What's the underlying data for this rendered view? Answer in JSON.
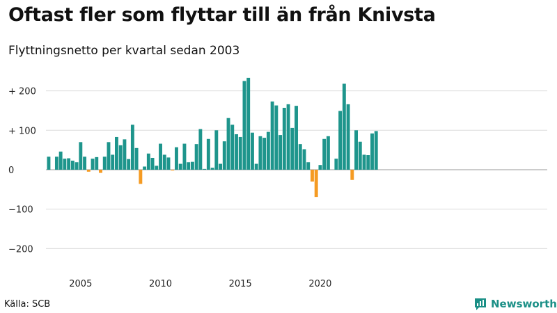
{
  "chart_data": {
    "type": "bar",
    "title": "Oftast fler som flyttar till än från Knivsta",
    "subtitle": "Flyttningsnetto per kvartal sedan 2003",
    "x_start": "2003 Q1",
    "values": [
      33,
      0,
      33,
      46,
      28,
      29,
      23,
      19,
      70,
      33,
      -5,
      28,
      32,
      -8,
      33,
      70,
      38,
      83,
      62,
      77,
      27,
      114,
      55,
      -36,
      8,
      41,
      30,
      10,
      66,
      38,
      31,
      -2,
      57,
      15,
      66,
      19,
      20,
      65,
      103,
      2,
      78,
      5,
      100,
      15,
      72,
      131,
      114,
      90,
      83,
      225,
      233,
      94,
      15,
      85,
      81,
      96,
      173,
      163,
      88,
      157,
      166,
      106,
      162,
      65,
      52,
      19,
      -30,
      -69,
      12,
      78,
      85,
      0,
      28,
      149,
      218,
      166,
      -26,
      100,
      71,
      38,
      37,
      92,
      98
    ],
    "positive_color": "#1e958c",
    "negative_color": "#f59b23",
    "ylim": [
      -230,
      250
    ],
    "yticks": [
      200,
      100,
      0,
      -100,
      -200
    ],
    "ytick_labels": [
      "+ 200",
      "+ 100",
      "0",
      "−100",
      "−200"
    ],
    "xticks": [
      "2005",
      "2010",
      "2015",
      "2020"
    ],
    "grid": true
  },
  "footer": {
    "source": "Källa: SCB",
    "brand": "Newsworthy",
    "brand_icon": "newsworthy-logo-icon"
  }
}
